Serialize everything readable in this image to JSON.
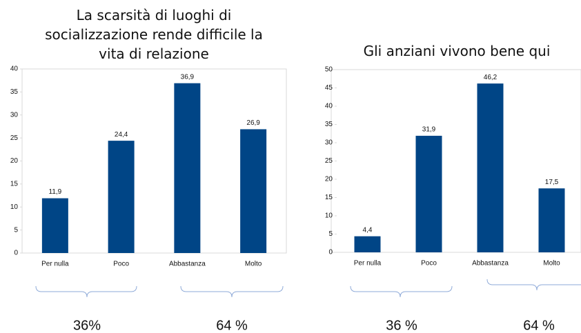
{
  "chart_data": [
    {
      "type": "bar",
      "title": "La scarsità di luoghi di socializzazione rende difficile la vita di relazione",
      "categories": [
        "Per nulla",
        "Poco",
        "Abbastanza",
        "Molto"
      ],
      "values": [
        11.9,
        24.4,
        36.9,
        26.9
      ],
      "value_labels": [
        "11,9",
        "24,4",
        "36,9",
        "26,9"
      ],
      "color": "#004586",
      "ylim": [
        0,
        40
      ],
      "yticks": [
        0,
        5,
        10,
        15,
        20,
        25,
        30,
        35,
        40
      ],
      "annotations": [
        "36%",
        "64 %"
      ]
    },
    {
      "type": "bar",
      "title": "Gli anziani vivono bene qui",
      "categories": [
        "Per nulla",
        "Poco",
        "Abbastanza",
        "Molto"
      ],
      "values": [
        4.4,
        31.9,
        46.2,
        17.5
      ],
      "value_labels": [
        "4,4",
        "31,9",
        "46,2",
        "17,5"
      ],
      "color": "#004586",
      "ylim": [
        0,
        50
      ],
      "yticks": [
        0,
        5,
        10,
        15,
        20,
        25,
        30,
        35,
        40,
        45,
        50
      ],
      "annotations": [
        "36 %",
        "64 %"
      ]
    }
  ]
}
